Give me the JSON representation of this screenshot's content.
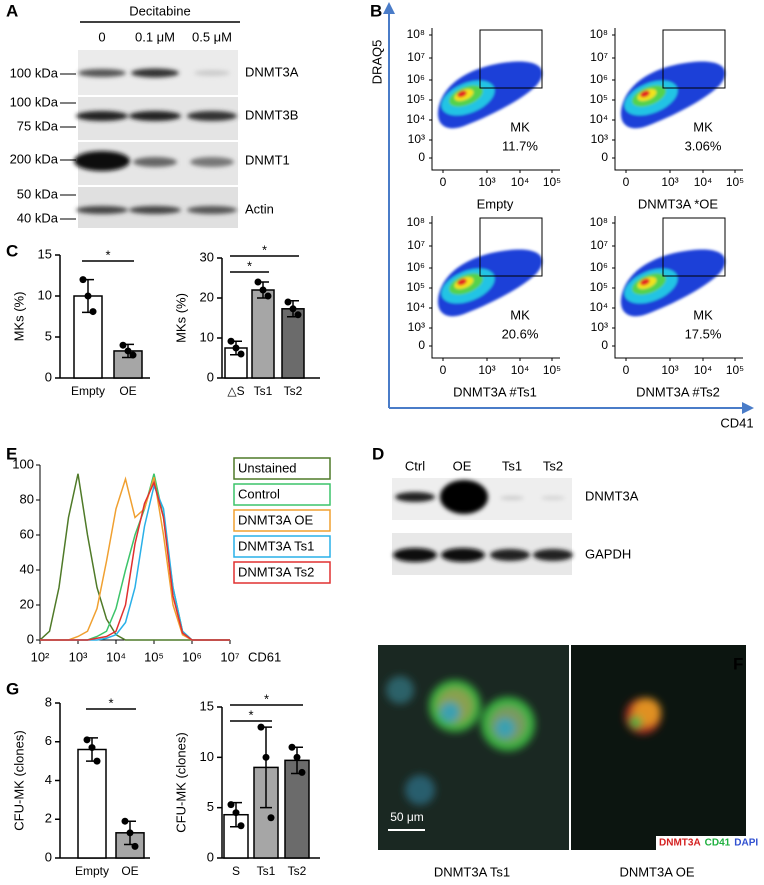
{
  "panel_labels": [
    "A",
    "B",
    "C",
    "D",
    "E",
    "F",
    "G"
  ],
  "blot_a": {
    "treatment": "Decitabine",
    "lanes": [
      "0",
      "0.1 μM",
      "0.5 μM"
    ],
    "rows": [
      {
        "protein": "DNMT3A",
        "markers": [
          "100 kDa"
        ]
      },
      {
        "protein": "DNMT3B",
        "markers": [
          "100 kDa",
          "75 kDa"
        ]
      },
      {
        "protein": "DNMT1",
        "markers": [
          "200 kDa"
        ]
      },
      {
        "protein": "Actin",
        "markers": [
          "50 kDa",
          "40 kDa"
        ]
      }
    ]
  },
  "flow_b": {
    "y_label": "DRAQ5",
    "x_label": "CD41",
    "y_tick_labels": [
      "10⁸",
      "10⁷",
      "10⁶",
      "10⁵",
      "10⁴",
      "10³",
      "0"
    ],
    "x_tick_labels": [
      "0",
      "10³",
      "10⁴",
      "10⁵"
    ],
    "plots": [
      {
        "gate": "MK",
        "percent": "11.7%",
        "label": "Empty"
      },
      {
        "gate": "MK",
        "percent": "3.06%",
        "label": "DNMT3A *OE"
      },
      {
        "gate": "MK",
        "percent": "20.6%",
        "label": "DNMT3A #Ts1"
      },
      {
        "gate": "MK",
        "percent": "17.5%",
        "label": "DNMT3A #Ts2"
      }
    ]
  },
  "blot_d": {
    "lanes": [
      "Ctrl",
      "OE",
      "Ts1",
      "Ts2"
    ],
    "rows": [
      "DNMT3A",
      "GAPDH"
    ]
  },
  "images_f": {
    "scale_bar": "50 μm",
    "stain_labels": [
      "DNMT3A",
      "CD41",
      "DAPI"
    ],
    "stain_colors": [
      "#d42020",
      "#20b040",
      "#3050d0"
    ],
    "captions": [
      "DNMT3A Ts1",
      "DNMT3A OE"
    ]
  },
  "chart_data": [
    {
      "type": "bar",
      "y_label": "MKs (%)",
      "categories": [
        "Empty",
        "OE"
      ],
      "values": [
        10,
        3.3
      ],
      "errors": [
        2,
        0.8
      ],
      "points": [
        [
          12,
          10,
          8.1
        ],
        [
          4,
          3.3,
          2.8
        ]
      ],
      "colors": [
        "#ffffff",
        "#a6a6a6"
      ],
      "ylim": [
        0,
        15
      ],
      "yticks": [
        0,
        5,
        10,
        15
      ],
      "significance": [
        {
          "from": "Empty",
          "to": "OE",
          "label": "*"
        }
      ]
    },
    {
      "type": "bar",
      "y_label": "MKs (%)",
      "categories": [
        "△S",
        "Ts1",
        "Ts2"
      ],
      "values": [
        7.5,
        22,
        17.3
      ],
      "errors": [
        1.7,
        2,
        2
      ],
      "points": [
        [
          9.2,
          7.5,
          6
        ],
        [
          24,
          22,
          20.5
        ],
        [
          19,
          17.3,
          15.8
        ]
      ],
      "colors": [
        "#ffffff",
        "#a6a6a6",
        "#6b6b6b"
      ],
      "ylim": [
        0,
        30
      ],
      "yticks": [
        0,
        10,
        20,
        30
      ],
      "significance": [
        {
          "from": "△S",
          "to": "Ts1",
          "label": "*"
        },
        {
          "from": "△S",
          "to": "Ts2",
          "label": "*"
        }
      ]
    },
    {
      "type": "line",
      "x_label": "CD61",
      "x_scale": "log",
      "x": [
        100,
        178,
        316,
        562,
        1000,
        1778,
        3162,
        5623,
        10000,
        17783,
        31623,
        56234,
        100000,
        177828,
        316228,
        562341,
        1000000,
        10000000
      ],
      "xlim": [
        100,
        10000000
      ],
      "ylim": [
        0,
        100
      ],
      "yticks": [
        0,
        20,
        40,
        60,
        80,
        100
      ],
      "xticks": [
        {
          "value": 100,
          "label": "10²"
        },
        {
          "value": 1000,
          "label": "10³"
        },
        {
          "value": 10000,
          "label": "10⁴"
        },
        {
          "value": 100000,
          "label": "10⁵"
        },
        {
          "value": 1000000,
          "label": "10⁶"
        },
        {
          "value": 10000000,
          "label": "10⁷"
        }
      ],
      "series": [
        {
          "name": "Unstained",
          "color": "#4f7a28",
          "values": [
            0,
            5,
            30,
            70,
            95,
            60,
            30,
            12,
            3,
            0,
            0,
            0,
            0,
            0,
            0,
            0,
            0,
            0
          ]
        },
        {
          "name": "Control",
          "color": "#3cc46a",
          "values": [
            0,
            0,
            0,
            0,
            0,
            0,
            2,
            5,
            18,
            40,
            60,
            75,
            95,
            70,
            30,
            5,
            0,
            0
          ]
        },
        {
          "name": "DNMT3A OE",
          "color": "#f0a030",
          "values": [
            0,
            0,
            0,
            0,
            2,
            5,
            18,
            45,
            75,
            92,
            70,
            75,
            93,
            60,
            20,
            3,
            0,
            0
          ]
        },
        {
          "name": "DNMT3A Ts1",
          "color": "#29b0e8",
          "values": [
            0,
            0,
            0,
            0,
            0,
            0,
            0,
            1,
            3,
            10,
            30,
            65,
            88,
            75,
            30,
            5,
            0,
            0
          ]
        },
        {
          "name": "DNMT3A Ts2",
          "color": "#e03030",
          "values": [
            0,
            0,
            0,
            0,
            0,
            0,
            1,
            2,
            5,
            20,
            55,
            78,
            90,
            70,
            25,
            4,
            0,
            0
          ]
        }
      ]
    },
    {
      "type": "bar",
      "y_label": "CFU-MK (clones)",
      "categories": [
        "Empty",
        "OE"
      ],
      "values": [
        5.6,
        1.3
      ],
      "errors": [
        0.6,
        0.6
      ],
      "points": [
        [
          6.1,
          5.7,
          5
        ],
        [
          1.9,
          1.3,
          0.6
        ]
      ],
      "colors": [
        "#ffffff",
        "#a6a6a6"
      ],
      "ylim": [
        0,
        8
      ],
      "yticks": [
        0,
        2,
        4,
        6,
        8
      ],
      "significance": [
        {
          "from": "Empty",
          "to": "OE",
          "label": "*"
        }
      ]
    },
    {
      "type": "bar",
      "y_label": "CFU-MK (clones)",
      "categories": [
        "S",
        "Ts1",
        "Ts2"
      ],
      "values": [
        4.3,
        9,
        9.7
      ],
      "errors": [
        1.2,
        4,
        1.3
      ],
      "points": [
        [
          5.3,
          4.5,
          3.2
        ],
        [
          13,
          10,
          4
        ],
        [
          11,
          10,
          8.5
        ]
      ],
      "colors": [
        "#ffffff",
        "#a6a6a6",
        "#6b6b6b"
      ],
      "ylim": [
        0,
        15
      ],
      "yticks": [
        0,
        5,
        10,
        15
      ],
      "significance": [
        {
          "from": "S",
          "to": "Ts1",
          "label": "*"
        },
        {
          "from": "S",
          "to": "Ts2",
          "label": "*"
        }
      ]
    }
  ]
}
